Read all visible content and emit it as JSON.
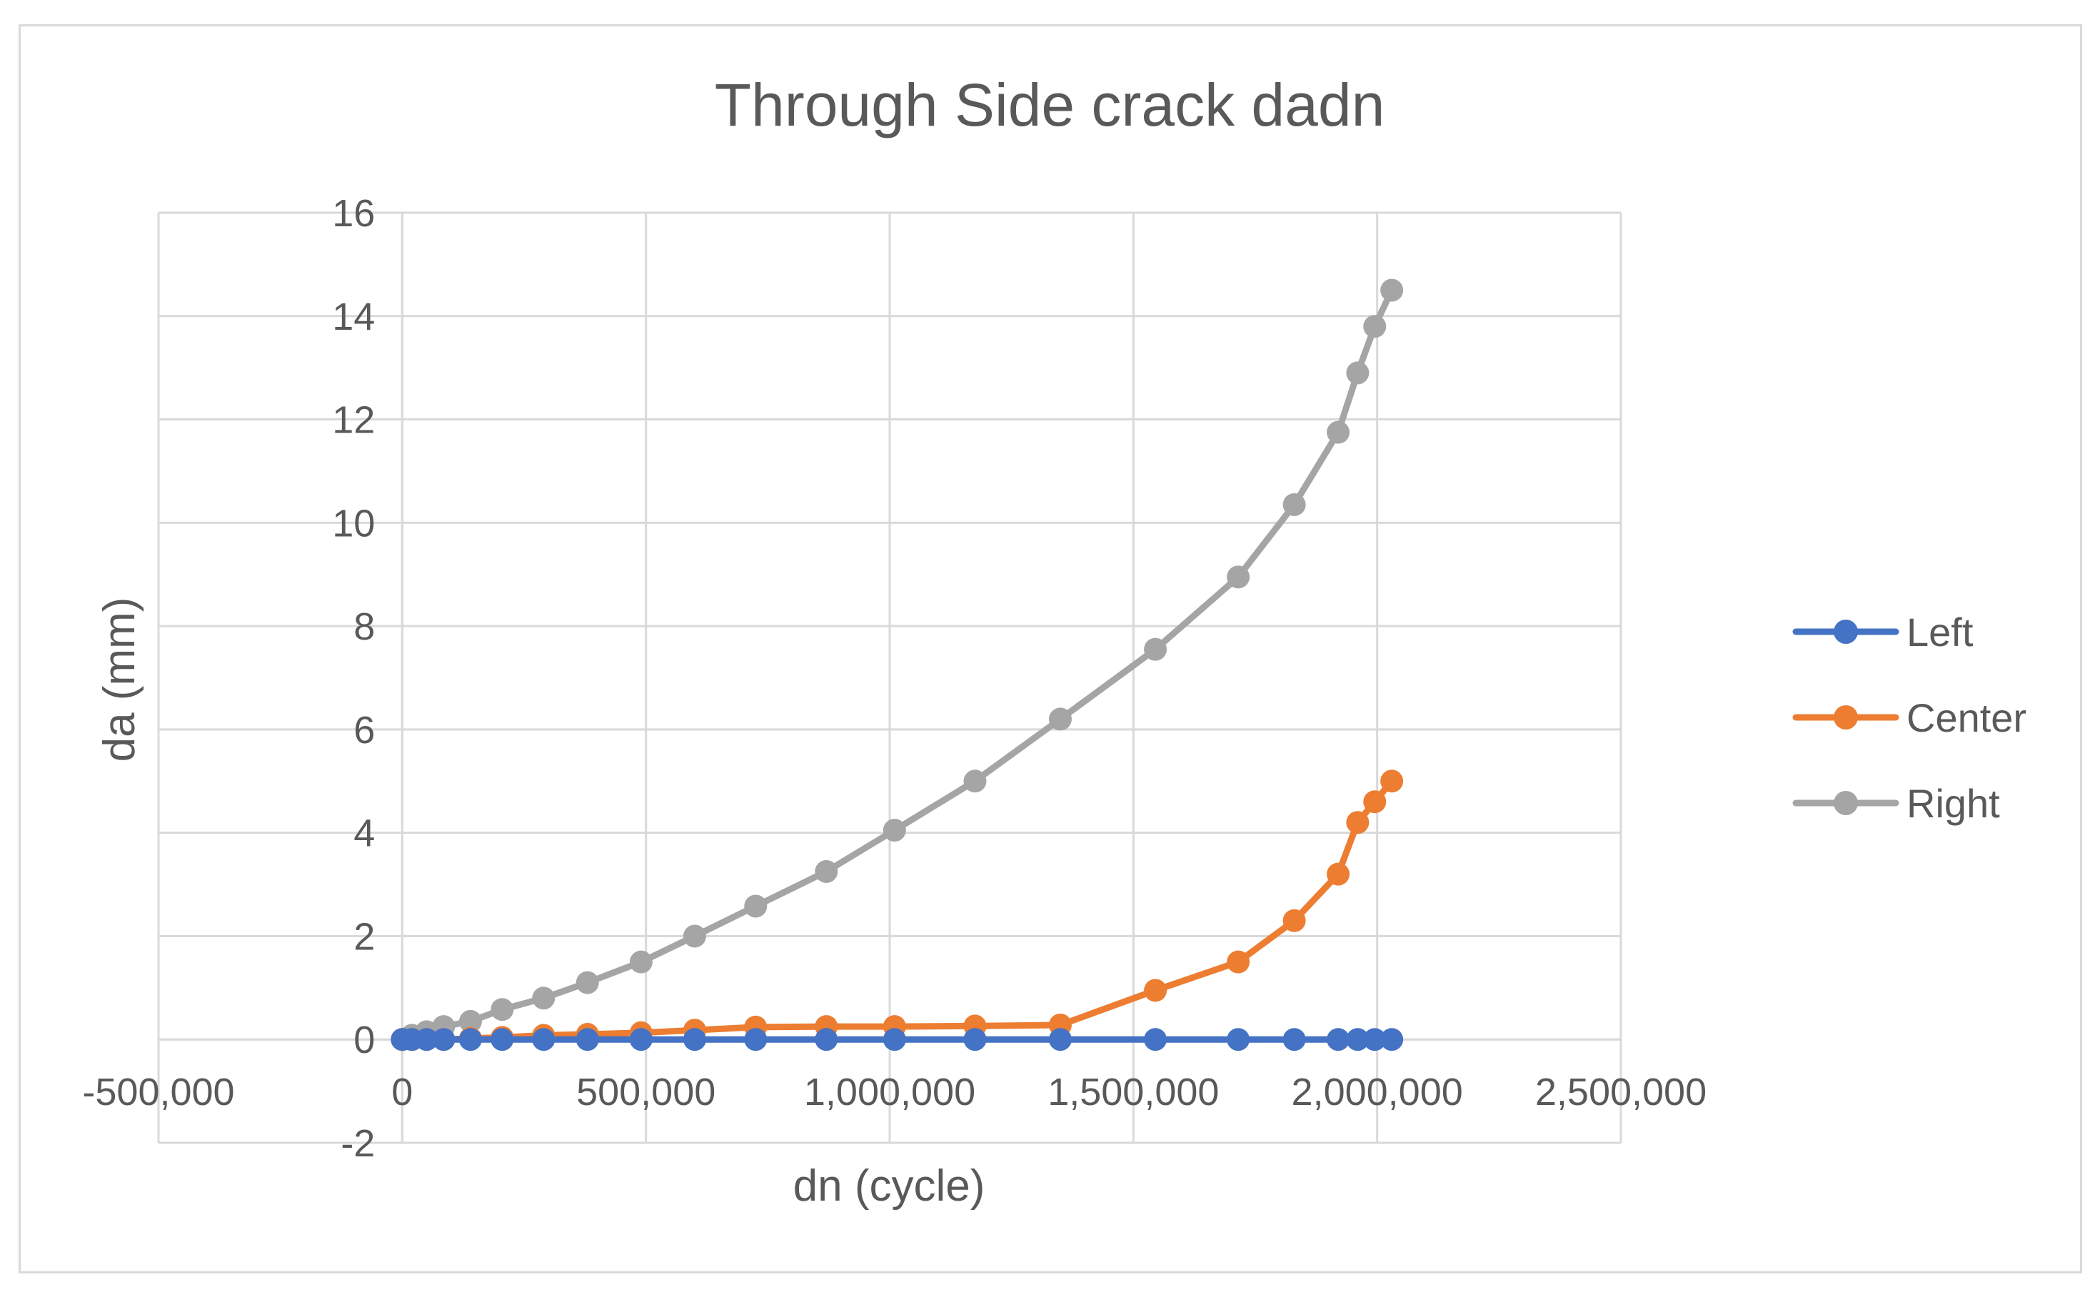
{
  "chart_data": {
    "type": "line",
    "title": "Through Side crack dadn",
    "xlabel": "dn (cycle)",
    "ylabel": "da (mm)",
    "xlim": [
      -500000,
      2500000
    ],
    "ylim": [
      -2,
      16
    ],
    "x_ticks": [
      -500000,
      0,
      500000,
      1000000,
      1500000,
      2000000,
      2500000
    ],
    "x_tick_labels": [
      "-500,000",
      "0",
      "500,000",
      "1,000,000",
      "1,500,000",
      "2,000,000",
      "2,500,000"
    ],
    "y_ticks": [
      -2,
      0,
      2,
      4,
      6,
      8,
      10,
      12,
      14,
      16
    ],
    "y_tick_labels": [
      "-2",
      "0",
      "2",
      "4",
      "6",
      "8",
      "10",
      "12",
      "14",
      "16"
    ],
    "grid": true,
    "legend_position": "right",
    "x": [
      0,
      20000,
      50000,
      85000,
      140000,
      205000,
      290000,
      380000,
      490000,
      600000,
      725000,
      870000,
      1010000,
      1175000,
      1350000,
      1545000,
      1715000,
      1830000,
      1920000,
      1960000,
      1995000,
      2030000
    ],
    "series": [
      {
        "name": "Left",
        "color": "#4472C4",
        "values": [
          0,
          0,
          0,
          0,
          0,
          0,
          0,
          0,
          0,
          0,
          0,
          0,
          0,
          0,
          0,
          0,
          0,
          0,
          0,
          0,
          0,
          0
        ]
      },
      {
        "name": "Center",
        "color": "#ED7D31",
        "values": [
          0,
          0,
          0,
          0,
          0.02,
          0.04,
          0.08,
          0.1,
          0.13,
          0.18,
          0.24,
          0.25,
          0.25,
          0.26,
          0.28,
          0.95,
          1.5,
          2.3,
          3.2,
          4.2,
          4.6,
          5.0
        ]
      },
      {
        "name": "Right",
        "color": "#A5A5A5",
        "values": [
          0,
          0.08,
          0.15,
          0.25,
          0.35,
          0.58,
          0.8,
          1.1,
          1.5,
          2.0,
          2.58,
          3.25,
          4.05,
          5.0,
          6.2,
          7.55,
          8.95,
          10.35,
          11.75,
          12.9,
          13.8,
          14.5
        ]
      }
    ]
  }
}
